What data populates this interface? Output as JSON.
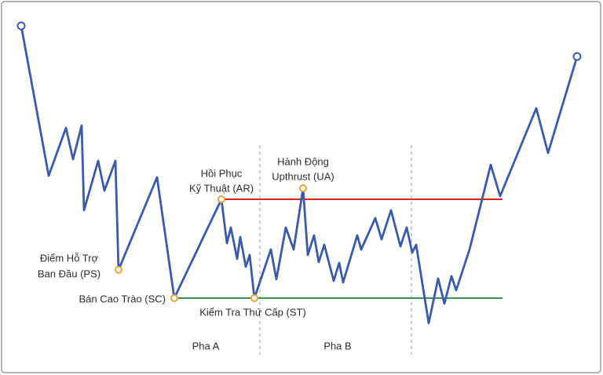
{
  "annotations": {
    "ps": [
      "Điểm Hỗ Trợ",
      "Ban Đầu (PS)"
    ],
    "sc": "Bán Cao Trào (SC)",
    "ar": [
      "Hồi Phục",
      "Kỹ Thuật (AR)"
    ],
    "st": "Kiểm Tra Thứ Cấp (ST)",
    "ua": [
      "Hành Động",
      "Upthrust (UA)"
    ]
  },
  "phases": [
    "Pha A",
    "Pha B"
  ]
}
